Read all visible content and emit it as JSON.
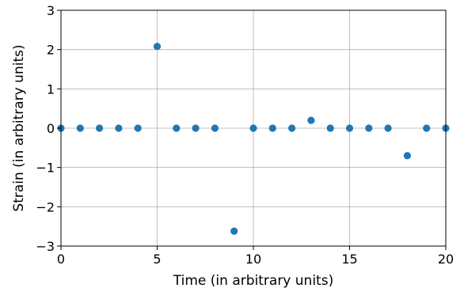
{
  "chart_data": {
    "type": "scatter",
    "title": "",
    "xlabel": "Time (in arbitrary units)",
    "ylabel": "Strain (in arbitrary units)",
    "xlim": [
      0,
      20
    ],
    "ylim": [
      -3,
      3
    ],
    "x_ticks": [
      0,
      5,
      10,
      15,
      20
    ],
    "y_ticks": [
      -3,
      -2,
      -1,
      0,
      1,
      2,
      3
    ],
    "x_tick_labels": [
      "0",
      "5",
      "10",
      "15",
      "20"
    ],
    "y_tick_labels": [
      "−3",
      "−2",
      "−1",
      "0",
      "1",
      "2",
      "3"
    ],
    "grid": true,
    "marker_color": "#1f77b4",
    "series": [
      {
        "x": [
          0,
          1,
          2,
          3,
          4,
          5,
          6,
          7,
          8,
          9,
          10,
          11,
          12,
          13,
          14,
          15,
          16,
          17,
          18,
          19,
          20
        ],
        "y": [
          0,
          0,
          0,
          0,
          0,
          2.08,
          0,
          0,
          0,
          -2.62,
          0,
          0,
          0,
          0.2,
          0,
          0,
          0,
          0,
          -0.7,
          0,
          0
        ]
      }
    ]
  }
}
